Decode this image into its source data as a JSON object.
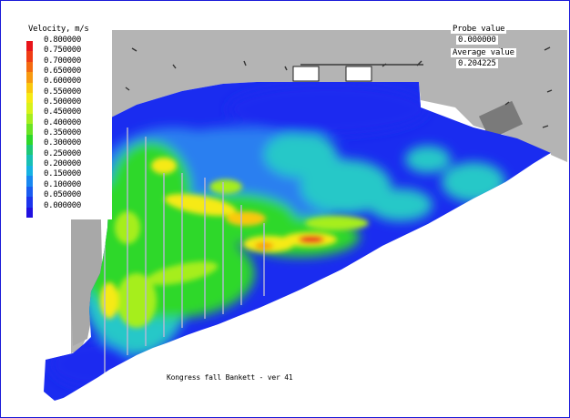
{
  "legend": {
    "title": "Velocity, m/s",
    "labels": [
      "0.800000",
      "0.750000",
      "0.700000",
      "0.650000",
      "0.600000",
      "0.550000",
      "0.500000",
      "0.450000",
      "0.400000",
      "0.350000",
      "0.300000",
      "0.250000",
      "0.200000",
      "0.150000",
      "0.100000",
      "0.050000",
      "0.000000"
    ],
    "colors": [
      "#e8141a",
      "#f03c14",
      "#f46a10",
      "#f89a10",
      "#fac80e",
      "#f6ea14",
      "#d8f21a",
      "#a6ee1e",
      "#6ae424",
      "#2ed82a",
      "#1ec878",
      "#18c0b4",
      "#16b2e2",
      "#1888f0",
      "#1a5cf0",
      "#1c34ec",
      "#2010e0"
    ]
  },
  "readouts": {
    "probe_label": "Probe value",
    "probe_value": "0.000000",
    "average_label": "Average value",
    "average_value": "0.204225"
  },
  "caption": "Kongress fall Bankett - ver 41",
  "colors": {
    "frame": "#1a1ad8",
    "geometry": "#b4b4b4",
    "low": "#1a2cf0",
    "high": "#e8141a"
  }
}
